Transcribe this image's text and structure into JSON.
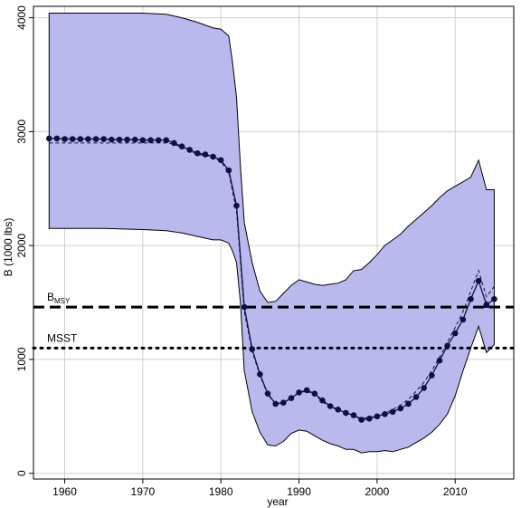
{
  "chart_data": {
    "type": "line",
    "xlabel": "year",
    "ylabel": "B (1000 lbs)",
    "xlim": [
      1956,
      2017.5
    ],
    "ylim": [
      -50,
      4100
    ],
    "x_ticks": [
      1960,
      1970,
      1980,
      1990,
      2000,
      2010
    ],
    "y_ticks": [
      0,
      1000,
      2000,
      3000,
      4000
    ],
    "grid": true,
    "colors": {
      "band": "#b9b9ee",
      "line": "#101040",
      "reference": "#000000"
    },
    "reference_lines": [
      {
        "name": "B_MSY",
        "label_main": "B",
        "label_sub": "MSY",
        "value": 1460,
        "style": "dashed"
      },
      {
        "name": "MSST",
        "label_main": "MSST",
        "label_sub": "",
        "value": 1100,
        "style": "dotted"
      }
    ],
    "uncertainty_band": {
      "x": [
        1958,
        1960,
        1965,
        1970,
        1973,
        1975,
        1977,
        1979,
        1980,
        1981,
        1981.5,
        1982,
        1982.5,
        1983,
        1984,
        1985,
        1986,
        1987,
        1988,
        1989,
        1990,
        1991,
        1992,
        1993,
        1994,
        1995,
        1996,
        1997,
        1998,
        1999,
        2000,
        2001,
        2002,
        2003,
        2004,
        2005,
        2006,
        2007,
        2008,
        2009,
        2010,
        2011,
        2012,
        2013,
        2014,
        2015
      ],
      "upper": [
        4040,
        4040,
        4040,
        4040,
        4030,
        4000,
        3960,
        3910,
        3900,
        3840,
        3600,
        3300,
        2700,
        2200,
        1850,
        1600,
        1500,
        1510,
        1580,
        1650,
        1700,
        1680,
        1660,
        1650,
        1660,
        1670,
        1700,
        1780,
        1790,
        1850,
        1920,
        2000,
        2050,
        2100,
        2170,
        2230,
        2290,
        2350,
        2420,
        2480,
        2520,
        2560,
        2600,
        2750,
        2490,
        2490
      ],
      "lower": [
        2150,
        2150,
        2150,
        2140,
        2130,
        2110,
        2080,
        2050,
        2050,
        2020,
        1950,
        1850,
        1500,
        900,
        540,
        360,
        250,
        240,
        280,
        350,
        380,
        370,
        330,
        290,
        260,
        240,
        210,
        210,
        180,
        190,
        190,
        200,
        190,
        210,
        230,
        270,
        310,
        360,
        430,
        520,
        680,
        900,
        1100,
        1290,
        1060,
        1130
      ]
    },
    "series": [
      {
        "x": [
          1958,
          1959,
          1960,
          1961,
          1962,
          1963,
          1964,
          1965,
          1966,
          1967,
          1968,
          1969,
          1970,
          1971,
          1972,
          1973,
          1974,
          1975,
          1976,
          1977,
          1978,
          1979,
          1980,
          1981,
          1982,
          1983,
          1984,
          1985,
          1986,
          1987,
          1988,
          1989,
          1990,
          1991,
          1992,
          1993,
          1994,
          1995,
          1996,
          1997,
          1998,
          1999,
          2000,
          2001,
          2002,
          2003,
          2004,
          2005,
          2006,
          2007,
          2008,
          2009,
          2010,
          2011,
          2012,
          2013,
          2014,
          2015
        ],
        "values": [
          2940,
          2940,
          2935,
          2935,
          2935,
          2935,
          2935,
          2935,
          2930,
          2930,
          2930,
          2930,
          2925,
          2925,
          2925,
          2925,
          2900,
          2870,
          2840,
          2810,
          2800,
          2780,
          2750,
          2660,
          2350,
          1460,
          1090,
          870,
          700,
          610,
          620,
          660,
          710,
          730,
          700,
          640,
          590,
          560,
          530,
          510,
          470,
          480,
          500,
          520,
          540,
          570,
          610,
          670,
          750,
          860,
          990,
          1120,
          1230,
          1350,
          1530,
          1690,
          1480,
          1530
        ]
      },
      {
        "x": [
          1958,
          1960,
          1965,
          1970,
          1973,
          1974,
          1975,
          1976,
          1977,
          1978,
          1979,
          1980,
          1981,
          1982,
          1983,
          1984,
          1985,
          1986,
          1987,
          1988,
          1989,
          1990,
          1991,
          1992,
          1993,
          1994,
          1995,
          1996,
          1997,
          1998,
          1999,
          2000,
          2001,
          2002,
          2003,
          2004,
          2005,
          2006,
          2007,
          2008,
          2009,
          2010,
          2011,
          2012,
          2013,
          2014,
          2015
        ],
        "values": [
          2900,
          2900,
          2900,
          2900,
          2900,
          2890,
          2860,
          2830,
          2800,
          2790,
          2770,
          2740,
          2640,
          2300,
          1420,
          1070,
          860,
          690,
          610,
          620,
          660,
          710,
          720,
          690,
          630,
          580,
          560,
          530,
          510,
          480,
          490,
          510,
          530,
          560,
          600,
          650,
          720,
          800,
          900,
          1020,
          1150,
          1280,
          1420,
          1600,
          1780,
          1550,
          1640
        ]
      },
      {
        "x": [
          2014
        ],
        "values": [
          1480
        ]
      }
    ]
  }
}
